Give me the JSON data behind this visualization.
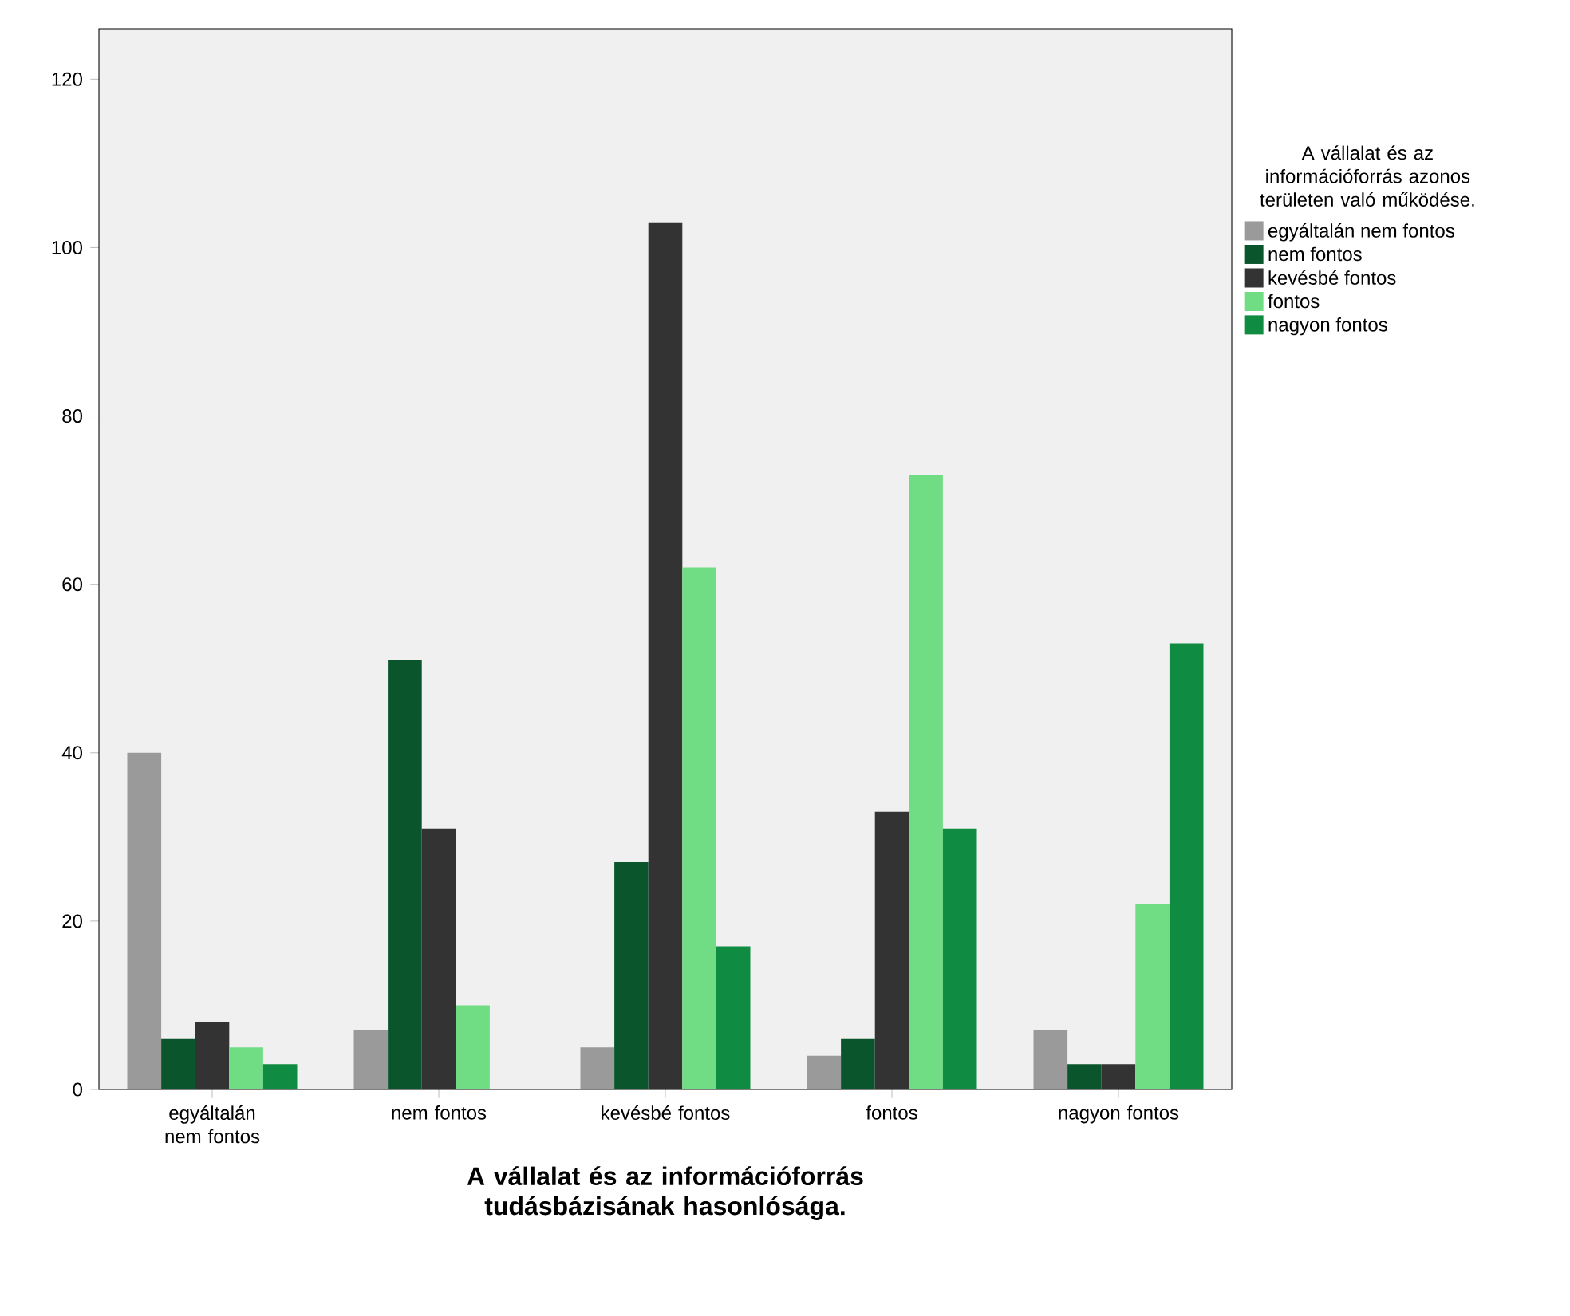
{
  "chart_data": {
    "type": "bar",
    "xlabel": "A vállalat és az információforrás tudásbázisának hasonlósága.",
    "legend_title": "A vállalat és az információforrás azonos területen való működése.",
    "categories": [
      "egyáltalán nem fontos",
      "nem fontos",
      "kevésbé fontos",
      "fontos",
      "nagyon fontos"
    ],
    "series": [
      {
        "name": "egyáltalán nem fontos",
        "color": "#9a9a9a",
        "values": [
          40,
          7,
          5,
          4,
          7
        ]
      },
      {
        "name": "nem fontos",
        "color": "#0b552c",
        "values": [
          6,
          51,
          27,
          6,
          3
        ]
      },
      {
        "name": "kevésbé fontos",
        "color": "#333333",
        "values": [
          8,
          31,
          103,
          33,
          3
        ]
      },
      {
        "name": "fontos",
        "color": "#70dc84",
        "values": [
          5,
          10,
          62,
          73,
          22
        ]
      },
      {
        "name": "nagyon fontos",
        "color": "#108c42",
        "values": [
          3,
          null,
          17,
          31,
          53
        ]
      }
    ],
    "ylim": [
      0,
      126
    ],
    "yticks": [
      0,
      20,
      40,
      60,
      80,
      100,
      120
    ],
    "legend": "right",
    "grid": false
  }
}
